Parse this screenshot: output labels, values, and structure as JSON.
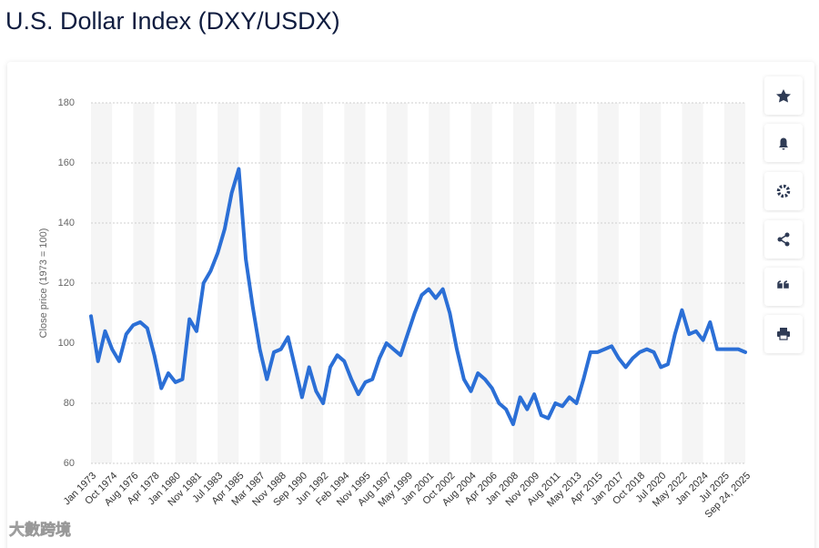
{
  "chart_data": {
    "type": "line",
    "title": "U.S. Dollar Index (DXY/USDX)",
    "ylabel": "Close price (1973 = 100)",
    "categories": [
      "Jan 1973",
      null,
      null,
      "Oct 1974",
      null,
      null,
      "Aug 1976",
      null,
      null,
      "Apr 1978",
      null,
      null,
      "Jan 1980",
      null,
      null,
      "Nov 1981",
      null,
      null,
      "Jul 1983",
      null,
      null,
      "Apr 1985",
      null,
      null,
      "Mar 1987",
      null,
      null,
      "Nov 1988",
      null,
      null,
      "Sep 1990",
      null,
      null,
      "Jun 1992",
      null,
      null,
      "Feb 1994",
      null,
      null,
      "Nov 1995",
      null,
      null,
      "Aug 1997",
      null,
      null,
      "May 1999",
      null,
      null,
      "Jan 2001",
      null,
      null,
      "Oct 2002",
      null,
      null,
      "Aug 2004",
      null,
      null,
      "Apr 2006",
      null,
      null,
      "Jan 2008",
      null,
      null,
      "Nov 2009",
      null,
      null,
      "Aug 2011",
      null,
      null,
      "May 2013",
      null,
      null,
      "Apr 2015",
      null,
      null,
      "Jan 2017",
      null,
      null,
      "Oct 2018",
      null,
      null,
      "Jul 2020",
      null,
      null,
      "May 2022",
      null,
      null,
      "Jan 2024",
      null,
      null,
      "Jul 2025",
      null,
      null,
      "Sep 24, 2025"
    ],
    "values": [
      109,
      94,
      104,
      98,
      94,
      103,
      106,
      107,
      105,
      96,
      85,
      90,
      87,
      88,
      108,
      104,
      120,
      124,
      130,
      138,
      150,
      158,
      128,
      112,
      98,
      88,
      97,
      98,
      102,
      92,
      82,
      92,
      84,
      80,
      92,
      96,
      94,
      88,
      83,
      87,
      88,
      95,
      100,
      98,
      96,
      103,
      110,
      116,
      118,
      115,
      118,
      110,
      98,
      88,
      84,
      90,
      88,
      85,
      80,
      78,
      73,
      82,
      78,
      83,
      76,
      75,
      80,
      79,
      82,
      80,
      88,
      97,
      97,
      98,
      99,
      95,
      92,
      95,
      97,
      98,
      97,
      92,
      93,
      103,
      111,
      103,
      104,
      101,
      107,
      98,
      98,
      98,
      98,
      97
    ],
    "color": "#2b6fd6",
    "ylim": [
      60,
      180
    ],
    "yticks": [
      60,
      80,
      100,
      120,
      140,
      160,
      180
    ],
    "grid": true,
    "watermark": "大數跨境"
  }
}
